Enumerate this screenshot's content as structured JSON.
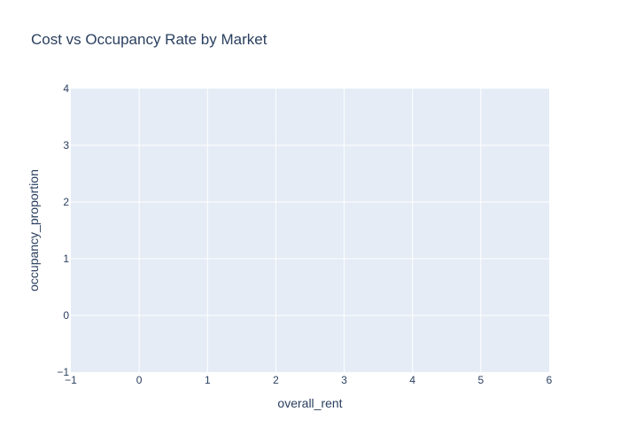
{
  "chart_data": {
    "type": "scatter",
    "title": "Cost vs Occupancy Rate by Market",
    "xlabel": "overall_rent",
    "ylabel": "occupancy_proportion",
    "xlim": [
      -1,
      6
    ],
    "ylim": [
      -1,
      4
    ],
    "x_ticks": [
      "−1",
      "0",
      "1",
      "2",
      "3",
      "4",
      "5",
      "6"
    ],
    "y_ticks": [
      "−1",
      "0",
      "1",
      "2",
      "3",
      "4"
    ],
    "grid": true,
    "series": [],
    "colors": {
      "plot_background": "#E5ECF6",
      "grid": "#ffffff",
      "text": "#2a3f5f"
    }
  }
}
